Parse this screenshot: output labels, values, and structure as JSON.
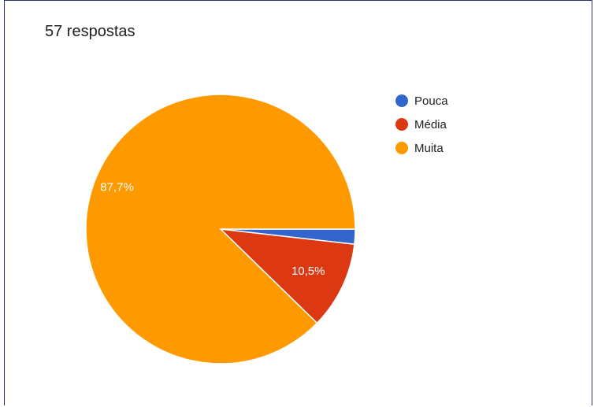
{
  "header": {
    "responses_label": "57 respostas"
  },
  "chart_data": {
    "type": "pie",
    "categories": [
      "Pouca",
      "Média",
      "Muita"
    ],
    "values": [
      1.8,
      10.5,
      87.7
    ],
    "data_labels": [
      "",
      "10,5%",
      "87,7%"
    ],
    "colors": [
      "#3366cc",
      "#dc3912",
      "#ff9900"
    ],
    "legend_position": "right",
    "start_angle": "3 o'clock, clockwise"
  }
}
